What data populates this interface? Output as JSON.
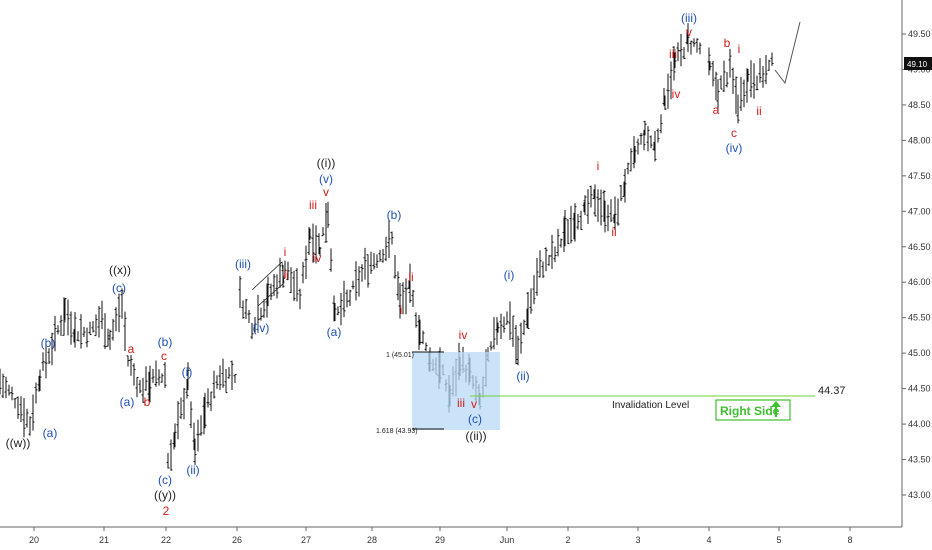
{
  "chart_data": {
    "type": "ohlc",
    "y_range": [
      42.6,
      50.0
    ],
    "y_ticks": [
      "49.50",
      "49.00",
      "48.50",
      "48.00",
      "47.50",
      "47.00",
      "46.50",
      "46.00",
      "45.50",
      "45.00",
      "44.50",
      "44.00",
      "43.50",
      "43.00"
    ],
    "x_ticks": [
      "20",
      "21",
      "22",
      "26",
      "27",
      "28",
      "29",
      "Jun",
      "2",
      "3",
      "4",
      "5",
      "8"
    ],
    "last_price": "49.10",
    "invalidation": {
      "label": "Invalidation Level",
      "value": "44.37"
    },
    "fib": [
      {
        "label": "1 (45.01)",
        "value": 45.01
      },
      {
        "label": "1.618 (43.93)",
        "value": 43.93
      }
    ],
    "right_side_label": "Right Side",
    "wave_labels": [
      {
        "text": "((w))",
        "color": "#222222"
      },
      {
        "text": "(a)",
        "color": "#1f4fb4"
      },
      {
        "text": "(b)",
        "color": "#1f4fb4"
      },
      {
        "text": "((x))",
        "color": "#222222"
      },
      {
        "text": "(c)",
        "color": "#1f4fb4"
      },
      {
        "text": "a",
        "color": "#d11c1c"
      },
      {
        "text": "(a)",
        "color": "#1f4fb4"
      },
      {
        "text": "b",
        "color": "#d11c1c"
      },
      {
        "text": "(b)",
        "color": "#1f4fb4"
      },
      {
        "text": "c",
        "color": "#d11c1c"
      },
      {
        "text": "(c)",
        "color": "#1f4fb4"
      },
      {
        "text": "((y))",
        "color": "#222222"
      },
      {
        "text": "2",
        "color": "#d11c1c"
      },
      {
        "text": "(i)",
        "color": "#1f4fb4"
      },
      {
        "text": "(ii)",
        "color": "#1f4fb4"
      },
      {
        "text": "(iii)",
        "color": "#1f4fb4"
      },
      {
        "text": "(iv)",
        "color": "#1f4fb4"
      },
      {
        "text": "i",
        "color": "#d11c1c"
      },
      {
        "text": "ii",
        "color": "#d11c1c"
      },
      {
        "text": "((i))",
        "color": "#222222"
      },
      {
        "text": "(v)",
        "color": "#1f4fb4"
      },
      {
        "text": "v",
        "color": "#d11c1c"
      },
      {
        "text": "iii",
        "color": "#d11c1c"
      },
      {
        "text": "iv",
        "color": "#d11c1c"
      },
      {
        "text": "(a)",
        "color": "#1f4fb4"
      },
      {
        "text": "(b)",
        "color": "#1f4fb4"
      },
      {
        "text": "i",
        "color": "#d11c1c"
      },
      {
        "text": "ii",
        "color": "#d11c1c"
      },
      {
        "text": "iv",
        "color": "#d11c1c"
      },
      {
        "text": "iii",
        "color": "#d11c1c"
      },
      {
        "text": "v",
        "color": "#d11c1c"
      },
      {
        "text": "(c)",
        "color": "#1f4fb4"
      },
      {
        "text": "((ii))",
        "color": "#222222"
      },
      {
        "text": "(i)",
        "color": "#1f4fb4"
      },
      {
        "text": "(ii)",
        "color": "#1f4fb4"
      },
      {
        "text": "i",
        "color": "#d11c1c"
      },
      {
        "text": "ii",
        "color": "#d11c1c"
      },
      {
        "text": "iii",
        "color": "#d11c1c"
      },
      {
        "text": "iv",
        "color": "#d11c1c"
      },
      {
        "text": "(iii)",
        "color": "#1f4fb4"
      },
      {
        "text": "v",
        "color": "#d11c1c"
      },
      {
        "text": "b",
        "color": "#d11c1c"
      },
      {
        "text": "i",
        "color": "#d11c1c"
      },
      {
        "text": "a",
        "color": "#d11c1c"
      },
      {
        "text": "ii",
        "color": "#d11c1c"
      },
      {
        "text": "c",
        "color": "#d11c1c"
      },
      {
        "text": "(iv)",
        "color": "#1f4fb4"
      }
    ],
    "path": [
      [
        0,
        44.6
      ],
      [
        18,
        44.3
      ],
      [
        30,
        44.0
      ],
      [
        40,
        44.7
      ],
      [
        55,
        45.2
      ],
      [
        65,
        45.6
      ],
      [
        75,
        45.3
      ],
      [
        90,
        45.3
      ],
      [
        102,
        45.5
      ],
      [
        110,
        45.2
      ],
      [
        122,
        45.7
      ],
      [
        128,
        44.9
      ],
      [
        140,
        44.5
      ],
      [
        150,
        44.6
      ],
      [
        165,
        44.7
      ],
      [
        168,
        43.5
      ],
      [
        175,
        43.8
      ],
      [
        188,
        44.6
      ],
      [
        195,
        43.6
      ],
      [
        205,
        44.2
      ],
      [
        220,
        44.7
      ],
      [
        235,
        44.7
      ],
      [
        240,
        45.8
      ],
      [
        252,
        45.4
      ],
      [
        268,
        45.8
      ],
      [
        285,
        46.2
      ],
      [
        300,
        45.8
      ],
      [
        310,
        46.7
      ],
      [
        320,
        46.5
      ],
      [
        328,
        47.0
      ],
      [
        335,
        45.5
      ],
      [
        350,
        45.8
      ],
      [
        365,
        46.2
      ],
      [
        380,
        46.4
      ],
      [
        392,
        46.6
      ],
      [
        400,
        45.7
      ],
      [
        410,
        45.9
      ],
      [
        420,
        45.3
      ],
      [
        430,
        44.9
      ],
      [
        440,
        44.8
      ],
      [
        450,
        44.4
      ],
      [
        460,
        44.9
      ],
      [
        470,
        44.7
      ],
      [
        480,
        44.3
      ],
      [
        488,
        44.9
      ],
      [
        498,
        45.4
      ],
      [
        510,
        45.5
      ],
      [
        518,
        45.0
      ],
      [
        528,
        45.6
      ],
      [
        540,
        46.2
      ],
      [
        555,
        46.4
      ],
      [
        565,
        46.7
      ],
      [
        575,
        46.9
      ],
      [
        585,
        47.0
      ],
      [
        595,
        47.2
      ],
      [
        605,
        47.0
      ],
      [
        615,
        46.9
      ],
      [
        625,
        47.4
      ],
      [
        635,
        47.8
      ],
      [
        645,
        48.1
      ],
      [
        655,
        47.9
      ],
      [
        665,
        48.6
      ],
      [
        675,
        49.1
      ],
      [
        688,
        49.4
      ],
      [
        700,
        49.3
      ],
      [
        710,
        49.0
      ],
      [
        718,
        48.7
      ],
      [
        730,
        49.0
      ],
      [
        738,
        48.5
      ],
      [
        748,
        48.9
      ],
      [
        760,
        48.9
      ],
      [
        775,
        49.1
      ]
    ]
  }
}
